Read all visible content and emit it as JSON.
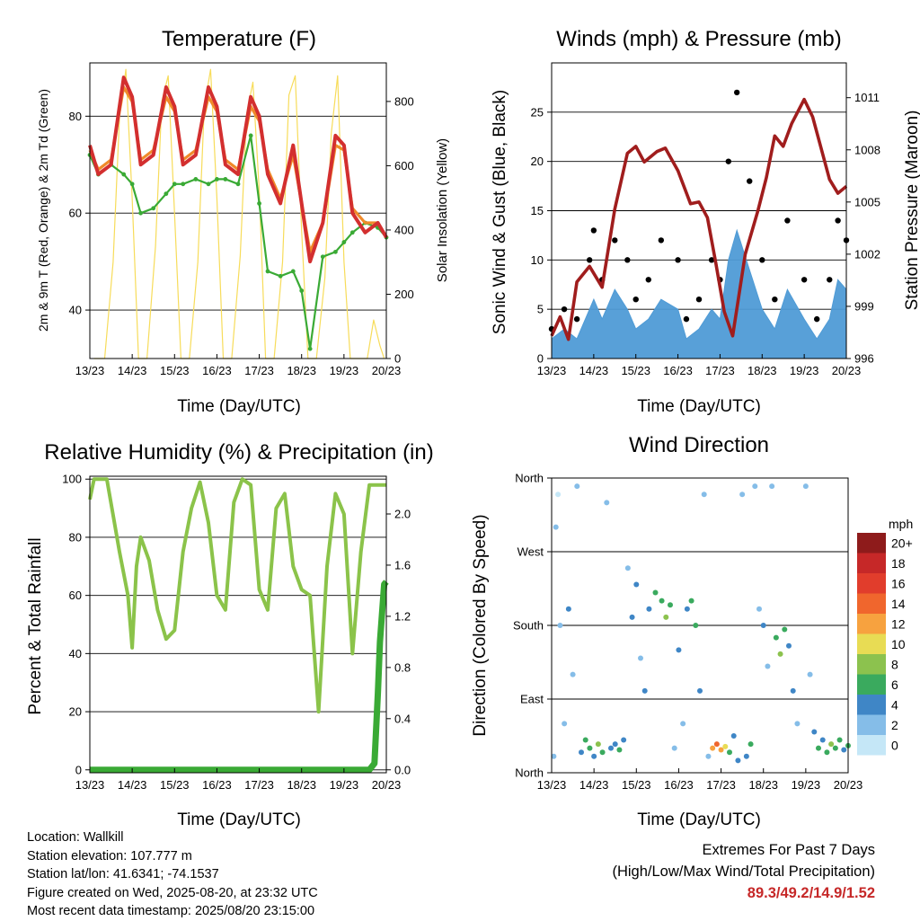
{
  "chart_data": [
    {
      "type": "line",
      "title": "Temperature (F)",
      "xlabel": "Time (Day/UTC)",
      "ylabel": "2m & 9m T (Red, Orange) & 2m Td (Green)",
      "y2label": "Solar Insolation (Yellow)",
      "x_ticks": [
        "13/23",
        "14/23",
        "15/23",
        "16/23",
        "17/23",
        "18/23",
        "19/23",
        "20/23"
      ],
      "xlim": [
        0,
        7
      ],
      "ylim": [
        30,
        91
      ],
      "y_ticks": [
        40,
        60,
        80
      ],
      "y2lim": [
        0,
        920
      ],
      "y2_ticks": [
        0,
        200,
        400,
        600,
        800
      ],
      "colors": {
        "t2m": "#d32f2f",
        "t9m": "#f08a2a",
        "td": "#3aaa35",
        "solar": "#f7dc5a"
      },
      "series": [
        {
          "name": "2m T",
          "x": [
            0,
            0.2,
            0.5,
            0.8,
            1.0,
            1.2,
            1.5,
            1.8,
            2.0,
            2.2,
            2.5,
            2.8,
            3.0,
            3.2,
            3.5,
            3.8,
            4.0,
            4.2,
            4.5,
            4.8,
            5.0,
            5.2,
            5.5,
            5.8,
            6.0,
            6.2,
            6.5,
            6.8,
            7.0
          ],
          "y": [
            74,
            68,
            70,
            88,
            84,
            70,
            72,
            86,
            82,
            70,
            72,
            86,
            82,
            70,
            68,
            84,
            80,
            68,
            62,
            74,
            62,
            50,
            58,
            76,
            74,
            60,
            56,
            58,
            55
          ]
        },
        {
          "name": "9m T",
          "x": [
            0,
            0.2,
            0.5,
            0.8,
            1.0,
            1.2,
            1.5,
            1.8,
            2.0,
            2.2,
            2.5,
            2.8,
            3.0,
            3.2,
            3.5,
            3.8,
            4.0,
            4.2,
            4.5,
            4.8,
            5.0,
            5.2,
            5.5,
            5.8,
            6.0,
            6.2,
            6.5,
            6.8,
            7.0
          ],
          "y": [
            73,
            69,
            71,
            86,
            83,
            71,
            73,
            84,
            81,
            71,
            73,
            84,
            81,
            71,
            69,
            82,
            79,
            69,
            63,
            72,
            62,
            52,
            58,
            74,
            73,
            61,
            58,
            58,
            55
          ]
        },
        {
          "name": "2m Td",
          "x": [
            0,
            0.2,
            0.5,
            0.8,
            1.0,
            1.2,
            1.5,
            1.8,
            2.0,
            2.2,
            2.5,
            2.8,
            3.0,
            3.2,
            3.5,
            3.8,
            4.0,
            4.2,
            4.5,
            4.8,
            5.0,
            5.2,
            5.5,
            5.8,
            6.0,
            6.2,
            6.5,
            6.8,
            7.0
          ],
          "y": [
            72,
            68,
            70,
            68,
            66,
            60,
            61,
            64,
            66,
            66,
            67,
            66,
            67,
            67,
            66,
            76,
            62,
            48,
            47,
            48,
            44,
            32,
            51,
            52,
            54,
            56,
            58,
            57,
            55
          ]
        },
        {
          "name": "Solar Insolation",
          "x": [
            0.1,
            0.35,
            0.55,
            0.7,
            0.85,
            1.0,
            1.15,
            1.35,
            1.55,
            1.7,
            1.85,
            2.0,
            2.15,
            2.35,
            2.55,
            2.7,
            2.85,
            3.0,
            3.15,
            3.35,
            3.55,
            3.7,
            3.85,
            4.0,
            4.15,
            4.35,
            4.55,
            4.7,
            4.85,
            5.0,
            5.15,
            5.35,
            5.55,
            5.7,
            5.85,
            6.0,
            6.15,
            6.35,
            6.55,
            6.7,
            6.85,
            6.95
          ],
          "y": [
            0,
            0,
            300,
            750,
            900,
            500,
            0,
            0,
            350,
            800,
            880,
            450,
            0,
            0,
            300,
            780,
            900,
            500,
            0,
            0,
            320,
            760,
            860,
            520,
            0,
            0,
            300,
            820,
            880,
            400,
            0,
            0,
            250,
            700,
            880,
            300,
            0,
            0,
            0,
            120,
            40,
            0
          ]
        }
      ]
    },
    {
      "type": "scatter",
      "title": "Winds (mph) & Pressure (mb)",
      "xlabel": "Time (Day/UTC)",
      "ylabel": "Sonic Wind & Gust (Blue, Black)",
      "y2label": "Station Pressure (Maroon)",
      "x_ticks": [
        "13/23",
        "14/23",
        "15/23",
        "16/23",
        "17/23",
        "18/23",
        "19/23",
        "20/23"
      ],
      "xlim": [
        0,
        7
      ],
      "ylim": [
        0,
        30
      ],
      "y_ticks": [
        0,
        5,
        10,
        15,
        20,
        25
      ],
      "y2lim": [
        996,
        1013
      ],
      "y2_ticks": [
        996,
        999,
        1002,
        1005,
        1008,
        1011
      ],
      "colors": {
        "wind": "#4f9bd6",
        "gust": "#000000",
        "pressure": "#a01d1d"
      },
      "series": [
        {
          "name": "Sonic Wind",
          "x": [
            0,
            0.3,
            0.6,
            0.9,
            1.0,
            1.2,
            1.5,
            1.8,
            2.0,
            2.3,
            2.6,
            3.0,
            3.2,
            3.5,
            3.8,
            4.0,
            4.2,
            4.4,
            4.7,
            5.0,
            5.3,
            5.6,
            6.0,
            6.3,
            6.6,
            6.8,
            7.0
          ],
          "y": [
            2,
            3,
            2,
            5,
            6,
            4,
            7,
            5,
            3,
            4,
            6,
            5,
            2,
            3,
            5,
            4,
            10,
            13,
            9,
            5,
            3,
            7,
            4,
            2,
            4,
            8,
            7
          ]
        },
        {
          "name": "Gust",
          "x": [
            0,
            0.3,
            0.6,
            0.9,
            1.0,
            1.2,
            1.5,
            1.8,
            2.0,
            2.3,
            2.6,
            3.0,
            3.2,
            3.5,
            3.8,
            4.0,
            4.2,
            4.4,
            4.7,
            5.0,
            5.3,
            5.6,
            6.0,
            6.3,
            6.6,
            6.8,
            7.0
          ],
          "y": [
            3,
            5,
            4,
            10,
            13,
            8,
            12,
            10,
            6,
            8,
            12,
            10,
            4,
            6,
            10,
            8,
            20,
            27,
            18,
            10,
            6,
            14,
            8,
            4,
            8,
            14,
            12
          ]
        },
        {
          "name": "Station Pressure",
          "x": [
            0,
            0.2,
            0.4,
            0.6,
            0.9,
            1.2,
            1.5,
            1.8,
            2.0,
            2.2,
            2.5,
            2.7,
            3.0,
            3.3,
            3.5,
            3.7,
            3.9,
            4.1,
            4.3,
            4.6,
            4.9,
            5.1,
            5.3,
            5.5,
            5.7,
            6.0,
            6.2,
            6.4,
            6.6,
            6.8,
            7.0
          ],
          "y": [
            997.3,
            998.4,
            997.1,
            1000.4,
            1001.3,
            1000.1,
            1004.6,
            1007.8,
            1008.2,
            1007.3,
            1007.9,
            1008.1,
            1006.8,
            1004.9,
            1005.0,
            1004.1,
            1001.5,
            998.7,
            997.3,
            1002.0,
            1004.5,
            1006.4,
            1008.8,
            1008.2,
            1009.5,
            1010.9,
            1009.9,
            1008.1,
            1006.3,
            1005.5,
            1005.9
          ]
        }
      ]
    },
    {
      "type": "line",
      "title": "Relative Humidity (%) & Precipitation (in)",
      "xlabel": "Time (Day/UTC)",
      "ylabel": "Percent & Total Rainfall",
      "x_ticks": [
        "13/23",
        "14/23",
        "15/23",
        "16/23",
        "17/23",
        "18/23",
        "19/23",
        "20/23"
      ],
      "xlim": [
        0,
        7
      ],
      "ylim": [
        -1,
        101
      ],
      "y_ticks": [
        0,
        20,
        40,
        60,
        80,
        100
      ],
      "y2lim": [
        -0.0227,
        2.295
      ],
      "y2_ticks": [
        "0.0",
        "0.4",
        "0.8",
        "1.2",
        "1.6",
        "2.0"
      ],
      "colors": {
        "rh": "#8bc34a",
        "precip": "#3aaa35"
      },
      "series": [
        {
          "name": "RH",
          "x": [
            0,
            0.1,
            0.4,
            0.7,
            0.9,
            1.0,
            1.1,
            1.2,
            1.4,
            1.6,
            1.8,
            2.0,
            2.2,
            2.4,
            2.6,
            2.8,
            3.0,
            3.2,
            3.4,
            3.6,
            3.8,
            4.0,
            4.2,
            4.4,
            4.6,
            4.8,
            5.0,
            5.2,
            5.4,
            5.6,
            5.8,
            6.0,
            6.2,
            6.4,
            6.6,
            6.8,
            7.0
          ],
          "y": [
            93,
            100,
            100,
            75,
            60,
            42,
            70,
            80,
            72,
            55,
            45,
            48,
            75,
            90,
            99,
            85,
            60,
            55,
            92,
            100,
            98,
            62,
            55,
            90,
            95,
            70,
            62,
            60,
            20,
            70,
            95,
            88,
            40,
            75,
            98,
            98,
            98
          ]
        },
        {
          "name": "Precipitation",
          "x": [
            0,
            6.6,
            6.72,
            6.8,
            6.85,
            6.95,
            7.0
          ],
          "y": [
            0,
            0,
            0.05,
            0.6,
            1.0,
            1.45,
            1.47
          ]
        }
      ]
    },
    {
      "type": "scatter",
      "title": "Wind Direction",
      "xlabel": "Time (Day/UTC)",
      "ylabel": "Direction (Colored By Speed)",
      "x_ticks": [
        "13/23",
        "14/23",
        "15/23",
        "16/23",
        "17/23",
        "18/23",
        "19/23",
        "20/23"
      ],
      "xlim": [
        0,
        7
      ],
      "y_ticks": [
        "North",
        "East",
        "South",
        "West",
        "North"
      ],
      "ylim": [
        0,
        360
      ],
      "legend": {
        "title": "mph",
        "labels": [
          "20+",
          "18",
          "16",
          "14",
          "12",
          "10",
          "8",
          "6",
          "4",
          "2",
          "0"
        ],
        "colors": [
          "#8e1b1b",
          "#c62828",
          "#e13d2c",
          "#f0662d",
          "#f7a23f",
          "#e8dc54",
          "#8cc24e",
          "#3aaa5e",
          "#3f86c6",
          "#85bde8",
          "#c5e7f7"
        ],
        "placement": "right"
      },
      "points": [
        {
          "x": 0.05,
          "dir": 20,
          "spd": 2
        },
        {
          "x": 0.1,
          "dir": 300,
          "spd": 1
        },
        {
          "x": 0.15,
          "dir": 340,
          "spd": 0
        },
        {
          "x": 0.2,
          "dir": 180,
          "spd": 1
        },
        {
          "x": 0.3,
          "dir": 60,
          "spd": 2
        },
        {
          "x": 0.4,
          "dir": 200,
          "spd": 3
        },
        {
          "x": 0.5,
          "dir": 120,
          "spd": 2
        },
        {
          "x": 0.6,
          "dir": 350,
          "spd": 1
        },
        {
          "x": 0.7,
          "dir": 25,
          "spd": 3
        },
        {
          "x": 0.8,
          "dir": 40,
          "spd": 6
        },
        {
          "x": 0.9,
          "dir": 30,
          "spd": 5
        },
        {
          "x": 1.0,
          "dir": 20,
          "spd": 4
        },
        {
          "x": 1.1,
          "dir": 35,
          "spd": 7
        },
        {
          "x": 1.2,
          "dir": 25,
          "spd": 5
        },
        {
          "x": 1.3,
          "dir": 330,
          "spd": 2
        },
        {
          "x": 1.4,
          "dir": 30,
          "spd": 4
        },
        {
          "x": 1.5,
          "dir": 35,
          "spd": 3
        },
        {
          "x": 1.6,
          "dir": 28,
          "spd": 5
        },
        {
          "x": 1.7,
          "dir": 40,
          "spd": 4
        },
        {
          "x": 1.8,
          "dir": 250,
          "spd": 2
        },
        {
          "x": 1.9,
          "dir": 190,
          "spd": 3
        },
        {
          "x": 2.0,
          "dir": 230,
          "spd": 4
        },
        {
          "x": 2.1,
          "dir": 140,
          "spd": 2
        },
        {
          "x": 2.2,
          "dir": 100,
          "spd": 3
        },
        {
          "x": 2.3,
          "dir": 200,
          "spd": 4
        },
        {
          "x": 2.45,
          "dir": 220,
          "spd": 5
        },
        {
          "x": 2.6,
          "dir": 210,
          "spd": 6
        },
        {
          "x": 2.7,
          "dir": 190,
          "spd": 7
        },
        {
          "x": 2.8,
          "dir": 205,
          "spd": 5
        },
        {
          "x": 2.9,
          "dir": 30,
          "spd": 2
        },
        {
          "x": 3.0,
          "dir": 150,
          "spd": 3
        },
        {
          "x": 3.1,
          "dir": 60,
          "spd": 2
        },
        {
          "x": 3.2,
          "dir": 200,
          "spd": 4
        },
        {
          "x": 3.3,
          "dir": 210,
          "spd": 6
        },
        {
          "x": 3.4,
          "dir": 180,
          "spd": 5
        },
        {
          "x": 3.5,
          "dir": 100,
          "spd": 3
        },
        {
          "x": 3.6,
          "dir": 340,
          "spd": 1
        },
        {
          "x": 3.7,
          "dir": 20,
          "spd": 2
        },
        {
          "x": 3.8,
          "dir": 30,
          "spd": 12
        },
        {
          "x": 3.9,
          "dir": 35,
          "spd": 14
        },
        {
          "x": 4.0,
          "dir": 28,
          "spd": 11
        },
        {
          "x": 4.1,
          "dir": 32,
          "spd": 9
        },
        {
          "x": 4.2,
          "dir": 25,
          "spd": 6
        },
        {
          "x": 4.3,
          "dir": 45,
          "spd": 4
        },
        {
          "x": 4.4,
          "dir": 15,
          "spd": 3
        },
        {
          "x": 4.5,
          "dir": 340,
          "spd": 2
        },
        {
          "x": 4.6,
          "dir": 20,
          "spd": 3
        },
        {
          "x": 4.7,
          "dir": 35,
          "spd": 5
        },
        {
          "x": 4.8,
          "dir": 350,
          "spd": 1
        },
        {
          "x": 4.9,
          "dir": 200,
          "spd": 2
        },
        {
          "x": 5.0,
          "dir": 180,
          "spd": 3
        },
        {
          "x": 5.1,
          "dir": 130,
          "spd": 2
        },
        {
          "x": 5.2,
          "dir": 350,
          "spd": 1
        },
        {
          "x": 5.3,
          "dir": 165,
          "spd": 6
        },
        {
          "x": 5.4,
          "dir": 145,
          "spd": 7
        },
        {
          "x": 5.5,
          "dir": 175,
          "spd": 5
        },
        {
          "x": 5.6,
          "dir": 155,
          "spd": 4
        },
        {
          "x": 5.7,
          "dir": 100,
          "spd": 3
        },
        {
          "x": 5.8,
          "dir": 60,
          "spd": 2
        },
        {
          "x": 6.0,
          "dir": 350,
          "spd": 1
        },
        {
          "x": 6.1,
          "dir": 120,
          "spd": 2
        },
        {
          "x": 6.2,
          "dir": 50,
          "spd": 3
        },
        {
          "x": 6.3,
          "dir": 30,
          "spd": 5
        },
        {
          "x": 6.4,
          "dir": 40,
          "spd": 4
        },
        {
          "x": 6.5,
          "dir": 25,
          "spd": 6
        },
        {
          "x": 6.6,
          "dir": 35,
          "spd": 7
        },
        {
          "x": 6.7,
          "dir": 30,
          "spd": 5
        },
        {
          "x": 6.8,
          "dir": 40,
          "spd": 6
        },
        {
          "x": 6.9,
          "dir": 28,
          "spd": 4
        },
        {
          "x": 7.0,
          "dir": 33,
          "spd": 5
        }
      ]
    }
  ],
  "footer": {
    "location": "Location: Wallkill",
    "elevation": "Station elevation: 107.777 m",
    "latlon": "Station lat/lon: 41.6341; -74.1537",
    "created": "Figure created on Wed, 2025-08-20, at 23:32 UTC",
    "recent": "Most recent data timestamp: 2025/08/20 23:15:00"
  },
  "extremes": {
    "title": "Extremes For Past 7 Days",
    "subtitle": "(High/Low/Max Wind/Total Precipitation)",
    "values": "89.3/49.2/14.9/1.52"
  }
}
